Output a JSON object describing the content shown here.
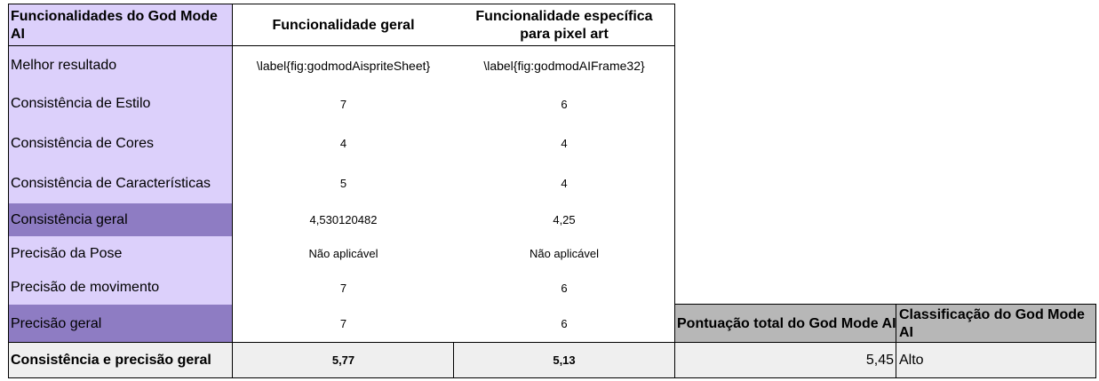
{
  "headers": {
    "col0": "Funcionalidades do God Mode AI",
    "col1": "Funcionalidade geral",
    "col2": "Funcionalidade específica para pixel art"
  },
  "rows": [
    {
      "label": "Melhor resultado",
      "v1": "\\label{fig:godmodAispriteSheet}",
      "v2": "\\label{fig:godmodAIFrame32}"
    },
    {
      "label": "Consistência de Estilo",
      "v1": "7",
      "v2": "6"
    },
    {
      "label": "Consistência de Cores",
      "v1": "4",
      "v2": "4"
    },
    {
      "label": "Consistência de Características",
      "v1": "5",
      "v2": "4"
    },
    {
      "label": "Consistência geral",
      "v1": "4,530120482",
      "v2": "4,25"
    },
    {
      "label": "Precisão da Pose",
      "v1": "Não aplicável",
      "v2": "Não aplicável"
    },
    {
      "label": "Precisão de movimento",
      "v1": "7",
      "v2": "6"
    },
    {
      "label": "Precisão geral",
      "v1": "7",
      "v2": "6"
    }
  ],
  "footer": {
    "label": "Consistência e precisão geral",
    "v1": "5,77",
    "v2": "5,13"
  },
  "summary": {
    "score_header": "Pontuação total do God Mode AI",
    "class_header": "Classificação do God Mode AI",
    "score_value": "5,45",
    "class_value": "Alto"
  },
  "colors": {
    "light_purple": "#dcd0fb",
    "dark_purple": "#8e7cc3",
    "gray": "#b7b7b7",
    "footer_bg": "#efefef"
  }
}
